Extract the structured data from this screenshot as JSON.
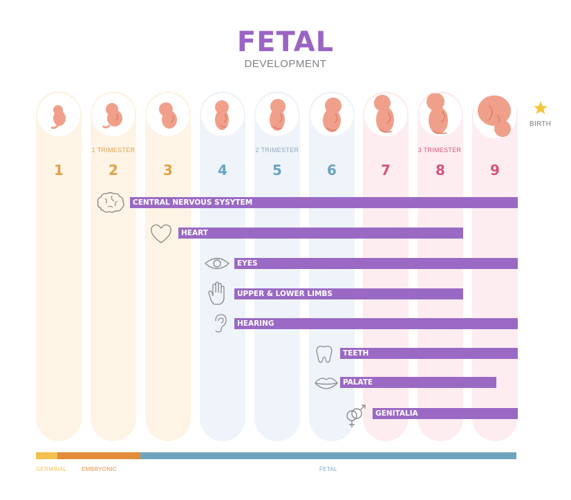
{
  "header": {
    "title": "FETAL",
    "subtitle": "DEVELOPMENT"
  },
  "months": [
    {
      "label": "1",
      "color": "#e0a04a"
    },
    {
      "label": "2",
      "color": "#e0a04a"
    },
    {
      "label": "3",
      "color": "#e0a04a"
    },
    {
      "label": "4",
      "color": "#6aa3c2"
    },
    {
      "label": "5",
      "color": "#6aa3c2"
    },
    {
      "label": "6",
      "color": "#6aa3c2"
    },
    {
      "label": "7",
      "color": "#d3547a"
    },
    {
      "label": "8",
      "color": "#d3547a"
    },
    {
      "label": "9",
      "color": "#d3547a"
    }
  ],
  "trimesters": [
    {
      "label": "1 TRIMESTER",
      "color": "#e0a04a"
    },
    {
      "label": "2 TRIMESTER",
      "color": "#8fa9bd"
    },
    {
      "label": "3 TRIMESTER",
      "color": "#d3547a"
    }
  ],
  "birth_label": "BIRTH",
  "milestones": [
    {
      "label": "CENTRAL NERVOUS SYSYTEM",
      "icon": "brain-icon",
      "start_month": 2,
      "end": "birth"
    },
    {
      "label": "HEART",
      "icon": "heart-icon",
      "start_month": 3,
      "end_month": 8
    },
    {
      "label": "EYES",
      "icon": "eye-icon",
      "start_month": 4,
      "end": "birth"
    },
    {
      "label": "UPPER & LOWER  LIMBS",
      "icon": "hand-icon",
      "start_month": 4,
      "end_month": 8
    },
    {
      "label": "HEARING",
      "icon": "ear-icon",
      "start_month": 4,
      "end": "birth"
    },
    {
      "label": "TEETH",
      "icon": "tooth-icon",
      "start_month": 6,
      "end": "birth"
    },
    {
      "label": "PALATE",
      "icon": "lips-icon",
      "start_month": 6,
      "end_month": 9
    },
    {
      "label": "GENITALIA",
      "icon": "gender-symbols-icon",
      "start_month": 7,
      "end": "birth"
    }
  ],
  "phases": [
    {
      "label": "GERMINAL",
      "color": "#f3c14e"
    },
    {
      "label": "EMBRYONIC",
      "color": "#e38c3c"
    },
    {
      "label": "FETAL",
      "color": "#6fa4bf"
    }
  ],
  "colors": {
    "accent": "#9a64c4",
    "bar": "#9a69c4",
    "fetus": "#f0a08a",
    "icon_stroke": "#8a8a8a",
    "star": "#f3c73a"
  }
}
